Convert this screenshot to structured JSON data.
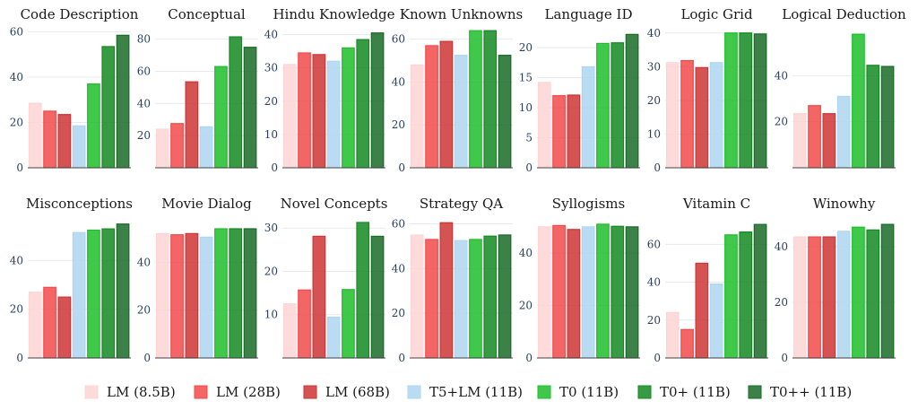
{
  "chart_data": {
    "type": "bar",
    "series": [
      {
        "name": "LM (8.5B)",
        "color": "#fdd5d5"
      },
      {
        "name": "LM (28B)",
        "color": "#f24a4a"
      },
      {
        "name": "LM (68B)",
        "color": "#cf3535"
      },
      {
        "name": "T5+LM (11B)",
        "color": "#aed6f1"
      },
      {
        "name": "T0 (11B)",
        "color": "#1fbe2c"
      },
      {
        "name": "T0+ (11B)",
        "color": "#148a22"
      },
      {
        "name": "T0++ (11B)",
        "color": "#196b28"
      }
    ],
    "panels": [
      {
        "title": "Code Description",
        "ylim": [
          0,
          61
        ],
        "ticks": [
          0,
          20,
          40,
          60
        ],
        "values": [
          28.5,
          25,
          23.5,
          18.5,
          37,
          53.5,
          58.5
        ]
      },
      {
        "title": "Conceptual",
        "ylim": [
          0,
          86
        ],
        "ticks": [
          20,
          40,
          60,
          80
        ],
        "values": [
          24,
          27.5,
          53.5,
          25.5,
          63,
          81.5,
          75
        ]
      },
      {
        "title": "Hindu Knowledge",
        "ylim": [
          0,
          41.5
        ],
        "ticks": [
          0,
          10,
          20,
          30,
          40
        ],
        "values": [
          31,
          34.5,
          34,
          32,
          36,
          38.5,
          40.5
        ]
      },
      {
        "title": "Known Unknowns",
        "ylim": [
          0,
          64.5
        ],
        "ticks": [
          0,
          20,
          40,
          60
        ],
        "values": [
          48,
          57,
          59,
          52.5,
          64,
          64,
          52.5
        ]
      },
      {
        "title": "Language ID",
        "ylim": [
          0,
          23
        ],
        "ticks": [
          0,
          5,
          10,
          15,
          20
        ],
        "values": [
          14.2,
          12,
          12.1,
          16.8,
          20.7,
          20.8,
          22.2
        ]
      },
      {
        "title": "Logic Grid",
        "ylim": [
          0,
          41
        ],
        "ticks": [
          0,
          10,
          20,
          30,
          40
        ],
        "values": [
          31.2,
          31.8,
          29.7,
          31.2,
          40,
          40,
          39.7
        ]
      },
      {
        "title": "Logical Deduction",
        "ylim": [
          0,
          60
        ],
        "ticks": [
          20,
          40
        ],
        "values": [
          23.5,
          27,
          23.5,
          31,
          58,
          44.5,
          44
        ]
      },
      {
        "title": "Misconceptions",
        "ylim": [
          0,
          56
        ],
        "ticks": [
          0,
          20,
          40
        ],
        "values": [
          27,
          29,
          25,
          51.5,
          52.5,
          53,
          55
        ]
      },
      {
        "title": "Movie Dialog",
        "ylim": [
          0,
          57
        ],
        "ticks": [
          0,
          20,
          40
        ],
        "values": [
          52,
          51.5,
          52,
          50.5,
          54,
          54,
          54
        ]
      },
      {
        "title": "Novel Concepts",
        "ylim": [
          0,
          31.5
        ],
        "ticks": [
          10,
          20,
          30
        ],
        "values": [
          12.5,
          15.7,
          28.1,
          9.4,
          15.8,
          31.3,
          28.1
        ]
      },
      {
        "title": "Strategy QA",
        "ylim": [
          0,
          61
        ],
        "ticks": [
          0,
          20,
          40,
          60
        ],
        "values": [
          55,
          53,
          60.5,
          52.5,
          53,
          54.5,
          55
        ]
      },
      {
        "title": "Syllogisms",
        "ylim": [
          0,
          52
        ],
        "ticks": [
          0,
          20,
          40
        ],
        "values": [
          50,
          50.5,
          49,
          50,
          51,
          50.2,
          50
        ]
      },
      {
        "title": "Vitamin C",
        "ylim": [
          0,
          72
        ],
        "ticks": [
          0,
          20,
          40,
          60
        ],
        "values": [
          24,
          15,
          50,
          39,
          65,
          66.5,
          70.5
        ]
      },
      {
        "title": "Winowhy",
        "ylim": [
          0,
          49
        ],
        "ticks": [
          0,
          20,
          40
        ],
        "values": [
          43.5,
          43.5,
          43.5,
          45.5,
          47,
          46,
          48
        ]
      }
    ]
  }
}
